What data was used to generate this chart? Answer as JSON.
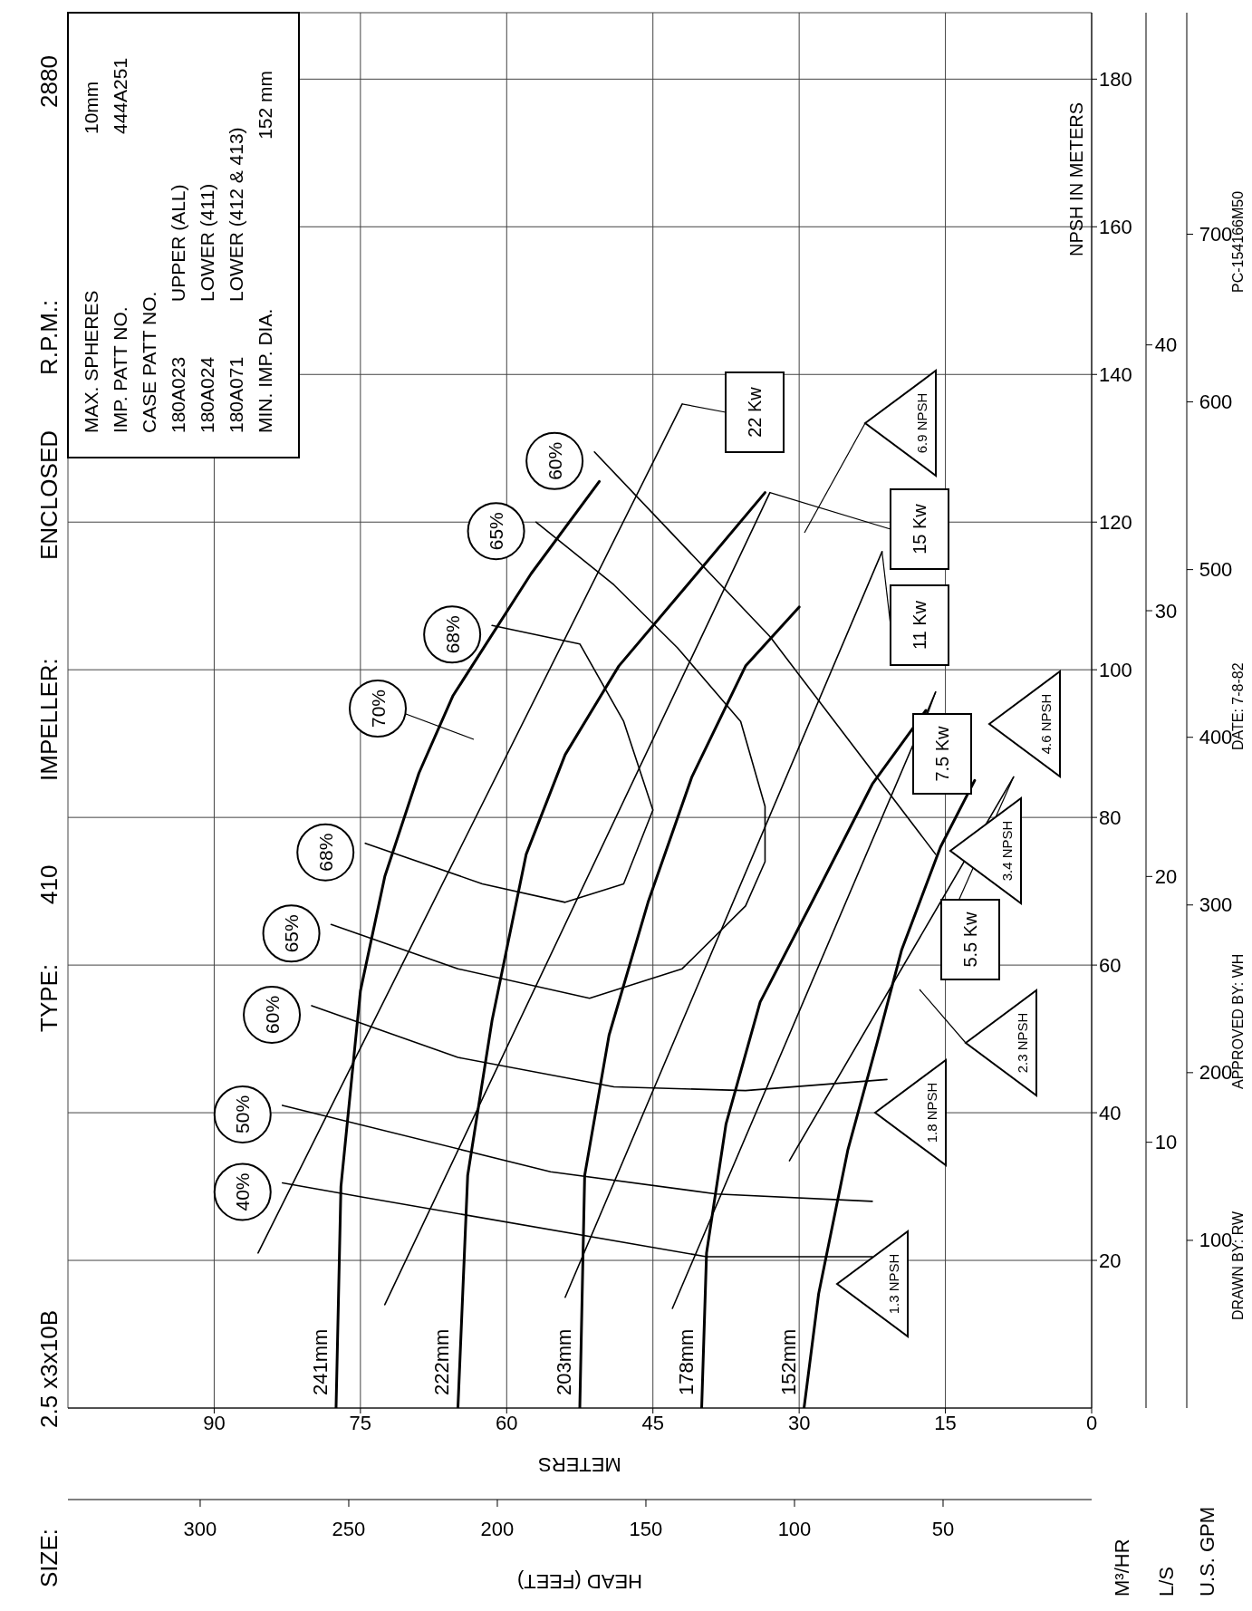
{
  "chart_data": {
    "type": "line",
    "xlabel": "METERS",
    "x2label": "HEAD (FEET)",
    "ylabel": "M³/HR",
    "y2label": "L/S",
    "y3label": "U.S. GPM",
    "xlim": [
      105,
      0
    ],
    "xticks": [
      90,
      75,
      60,
      45,
      30,
      15,
      0
    ],
    "x2lim": [
      344.5,
      0
    ],
    "x2ticks": [
      300,
      250,
      200,
      150,
      100,
      50
    ],
    "ylim": [
      0,
      189
    ],
    "yticks": [
      20,
      40,
      60,
      80,
      100,
      120,
      140,
      160,
      180
    ],
    "y2lim": [
      0,
      52.5
    ],
    "y2ticks": [
      10,
      20,
      30,
      40
    ],
    "y3lim": [
      0,
      832.1
    ],
    "y3ticks": [
      100,
      200,
      300,
      400,
      500,
      600,
      700
    ],
    "grid": true,
    "series": [
      {
        "name": "241mm",
        "color": "#000000",
        "x": [
          77.5,
          77,
          75,
          72.5,
          69,
          65.5,
          57.5,
          50.5
        ],
        "values": [
          0,
          30,
          56.5,
          72,
          86,
          96.5,
          113,
          125.5
        ]
      },
      {
        "name": "222mm",
        "color": "#000000",
        "x": [
          65,
          64,
          61.5,
          58,
          54,
          48.5,
          40.5,
          33.5
        ],
        "values": [
          0,
          31.5,
          52.5,
          75,
          88.5,
          100.5,
          113,
          124
        ]
      },
      {
        "name": "203mm",
        "color": "#000000",
        "x": [
          52.5,
          52,
          49.5,
          45.5,
          41,
          35.5,
          30
        ],
        "values": [
          0,
          31.5,
          50.5,
          68.5,
          85.5,
          100.5,
          108.5
        ]
      },
      {
        "name": "178mm",
        "color": "#000000",
        "x": [
          40,
          39.5,
          37.5,
          34,
          28.5,
          22.5,
          17
        ],
        "values": [
          0,
          21,
          38.5,
          55,
          69,
          84.5,
          94.5
        ]
      },
      {
        "name": "152mm",
        "color": "#000000",
        "x": [
          29.5,
          28,
          25,
          22,
          19.5,
          15.5,
          12
        ],
        "values": [
          0,
          15.5,
          35,
          49.5,
          62,
          76,
          85
        ]
      },
      {
        "name": "40%",
        "color": "#000000",
        "x": [
          83,
          74.5,
          39.5,
          22.5
        ],
        "values": [
          30.5,
          28.5,
          20.5,
          20.5
        ]
      },
      {
        "name": "50%",
        "color": "#000000",
        "x": [
          83,
          55.5,
          38.5,
          22.5
        ],
        "values": [
          41,
          32,
          29,
          28
        ]
      },
      {
        "name": "60%",
        "color": "#000000",
        "x": [
          80,
          65,
          49,
          35.5,
          21
        ],
        "values": [
          54.5,
          47.5,
          43.5,
          43,
          44.5
        ]
      },
      {
        "name": "60%",
        "color": "#000000",
        "x": [
          51,
          33,
          16
        ],
        "values": [
          129.5,
          104.5,
          75
        ]
      },
      {
        "name": "65%",
        "color": "#000000",
        "x": [
          78,
          65,
          51.5,
          42,
          35.5,
          33.5,
          33.5,
          36,
          42.5,
          49,
          57
        ],
        "values": [
          65.5,
          59.5,
          55.5,
          59.5,
          68,
          74,
          81.5,
          93,
          103,
          111.5,
          120
        ]
      },
      {
        "name": "68%",
        "color": "#000000",
        "x": [
          74.5,
          62.5,
          54,
          48,
          45,
          48,
          52.5,
          61.5
        ],
        "values": [
          76.5,
          71,
          68.5,
          71,
          81,
          93,
          103.5,
          106
        ]
      },
      {
        "name": "22 Kw",
        "color": "#000000",
        "x": [
          85.5,
          42
        ],
        "values": [
          21,
          136
        ]
      },
      {
        "name": "15 Kw",
        "color": "#000000",
        "x": [
          72.5,
          33
        ],
        "values": [
          14,
          124
        ]
      },
      {
        "name": "11 Kw",
        "color": "#000000",
        "x": [
          54,
          21.5
        ],
        "values": [
          15,
          116
        ]
      },
      {
        "name": "7.5 Kw",
        "color": "#000000",
        "x": [
          43,
          16
        ],
        "values": [
          13.5,
          97
        ]
      },
      {
        "name": "5.5 Kw",
        "color": "#000000",
        "x": [
          31,
          8
        ],
        "values": [
          33.5,
          85.5
        ]
      }
    ],
    "annotations": [
      "SIZE:",
      "2.5 x3x10B",
      "TYPE:",
      "410",
      "IMPELLER:",
      "ENCLOSED",
      "R.P.M.:",
      "2880",
      "MAX. SPHERES",
      "10mm",
      "IMP. PATT NO.",
      "444A251",
      "CASE PATT NO.",
      "180A023",
      "UPPER (ALL)",
      "180A024",
      "LOWER (411)",
      "180A071",
      "LOWER (412 & 413)",
      "MIN. IMP. DIA.",
      "152 mm",
      "NPSH IN METERS",
      "DRAWN BY: RW",
      "APPROVED BY: WH",
      "DATE: 7-8-82",
      "PC-154166M50",
      "70%",
      "1.3 NPSH",
      "1.8 NPSH",
      "2.3 NPSH",
      "3.4 NPSH",
      "4.6 NPSH",
      "6.9 NPSH"
    ]
  }
}
